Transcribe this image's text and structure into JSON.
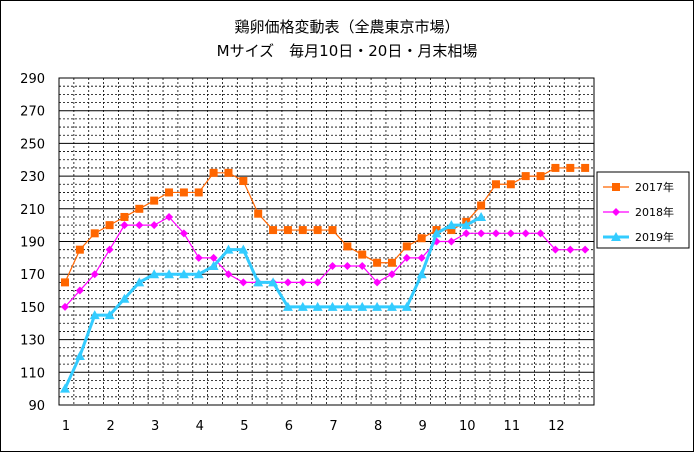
{
  "chart_data": {
    "type": "line",
    "title": "鶏卵価格変動表（全農東京市場）",
    "subtitle": "Mサイズ　毎月10日・20日・月末相場",
    "xlabel": "",
    "ylabel": "",
    "ylim": [
      90,
      290
    ],
    "yticks": [
      90,
      110,
      130,
      150,
      170,
      190,
      210,
      230,
      250,
      270,
      290
    ],
    "x_month_labels": [
      "1",
      "2",
      "3",
      "4",
      "5",
      "6",
      "7",
      "8",
      "9",
      "10",
      "11",
      "12"
    ],
    "grid": true,
    "legend_position": "right",
    "series": [
      {
        "name": "2017年",
        "color": "#ff6600",
        "line_color": "#ff6600",
        "marker": "square",
        "values": [
          165,
          185,
          195,
          200,
          205,
          210,
          215,
          220,
          220,
          220,
          232,
          232,
          227,
          207,
          197,
          197,
          197,
          197,
          197,
          187,
          182,
          177,
          177,
          187,
          192,
          197,
          197,
          202,
          212,
          225,
          225,
          230,
          230,
          235,
          235,
          235
        ]
      },
      {
        "name": "2018年",
        "color": "#ff00ff",
        "line_color": "#ff00ff",
        "marker": "diamond",
        "values": [
          150,
          160,
          170,
          185,
          200,
          200,
          200,
          205,
          195,
          180,
          180,
          170,
          165,
          165,
          165,
          165,
          165,
          165,
          175,
          175,
          175,
          165,
          170,
          180,
          180,
          190,
          190,
          195,
          195,
          195,
          195,
          195,
          195,
          185,
          185,
          185
        ]
      },
      {
        "name": "2019年",
        "color": "#33ccff",
        "line_color": "#33ccff",
        "marker": "triangle",
        "values": [
          100,
          120,
          145,
          145,
          155,
          165,
          170,
          170,
          170,
          170,
          175,
          185,
          185,
          165,
          165,
          150,
          150,
          150,
          150,
          150,
          150,
          150,
          150,
          150,
          170,
          195,
          200,
          200,
          205
        ]
      }
    ]
  }
}
